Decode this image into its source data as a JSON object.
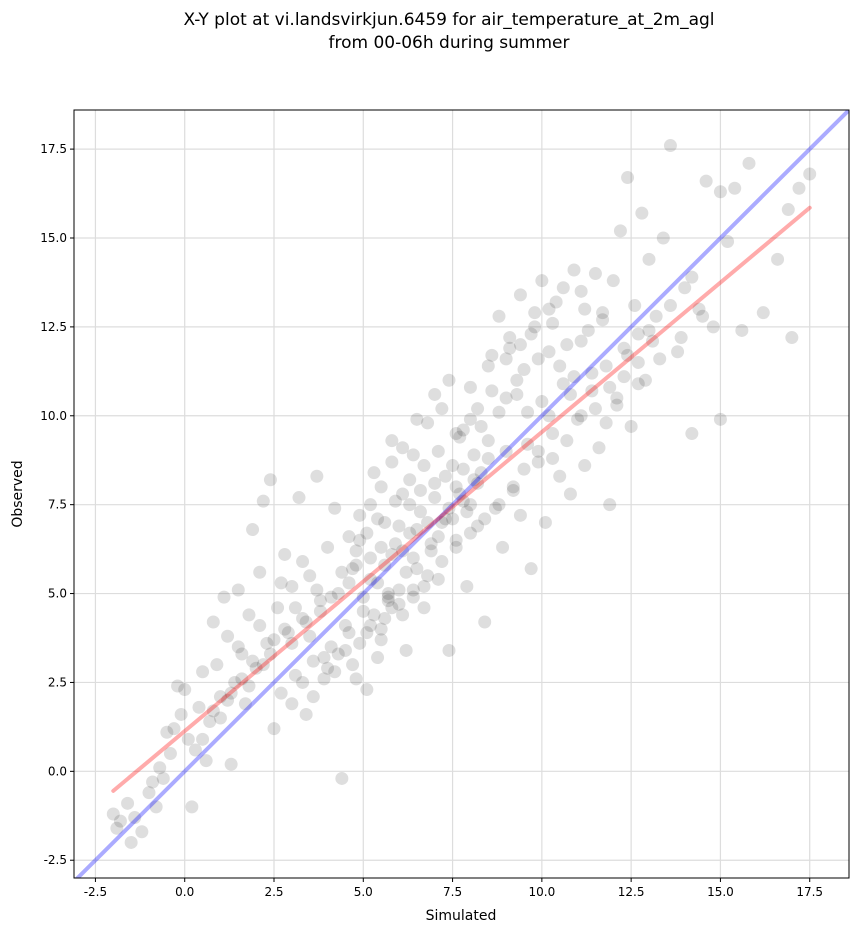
{
  "chart_data": {
    "type": "scatter",
    "title_lines": [
      "X-Y plot at vi.landsvirkjun.6459 for air_temperature_at_2m_agl",
      "from 00-06h during summer"
    ],
    "xlabel": "Simulated",
    "ylabel": "Observed",
    "xlim": [
      -3.1,
      18.6
    ],
    "ylim": [
      -3.0,
      18.6
    ],
    "xticks": [
      -2.5,
      0.0,
      2.5,
      5.0,
      7.5,
      10.0,
      12.5,
      15.0,
      17.5
    ],
    "yticks": [
      -2.5,
      0.0,
      2.5,
      5.0,
      7.5,
      10.0,
      12.5,
      15.0,
      17.5
    ],
    "grid": true,
    "colors": {
      "points": "#000000",
      "identity_line": "#0000ff",
      "regression_line": "#ff0000",
      "grid": "#dddddd"
    },
    "point_alpha": 0.08,
    "lines": [
      {
        "kind": "identity",
        "x": [
          -3.1,
          18.6
        ],
        "y": [
          -3.1,
          18.6
        ]
      },
      {
        "kind": "regression",
        "x": [
          -2.0,
          17.5
        ],
        "y": [
          -0.55,
          15.85
        ]
      }
    ],
    "points": [
      [
        -2.0,
        -1.2
      ],
      [
        -1.9,
        -1.6
      ],
      [
        -1.8,
        -1.4
      ],
      [
        -1.6,
        -0.9
      ],
      [
        -1.5,
        -2.0
      ],
      [
        -1.4,
        -1.3
      ],
      [
        -1.2,
        -1.7
      ],
      [
        -1.0,
        -0.6
      ],
      [
        -0.9,
        -0.3
      ],
      [
        -0.8,
        -1.0
      ],
      [
        -0.7,
        0.1
      ],
      [
        -0.6,
        -0.2
      ],
      [
        -0.5,
        1.1
      ],
      [
        -0.4,
        0.5
      ],
      [
        -0.3,
        1.2
      ],
      [
        -0.2,
        2.4
      ],
      [
        -0.1,
        1.6
      ],
      [
        0.0,
        2.3
      ],
      [
        0.1,
        0.9
      ],
      [
        0.2,
        -1.0
      ],
      [
        0.3,
        0.6
      ],
      [
        0.4,
        1.8
      ],
      [
        0.5,
        2.8
      ],
      [
        0.6,
        0.3
      ],
      [
        0.7,
        1.4
      ],
      [
        0.8,
        4.2
      ],
      [
        0.9,
        3.0
      ],
      [
        1.0,
        2.1
      ],
      [
        1.1,
        4.9
      ],
      [
        1.2,
        3.8
      ],
      [
        1.3,
        0.2
      ],
      [
        1.4,
        2.5
      ],
      [
        1.5,
        5.1
      ],
      [
        1.6,
        3.3
      ],
      [
        1.7,
        1.9
      ],
      [
        1.8,
        4.4
      ],
      [
        1.9,
        6.8
      ],
      [
        2.0,
        2.9
      ],
      [
        2.1,
        5.6
      ],
      [
        2.2,
        7.6
      ],
      [
        2.3,
        3.6
      ],
      [
        2.4,
        8.2
      ],
      [
        2.5,
        1.2
      ],
      [
        2.6,
        4.6
      ],
      [
        2.7,
        2.2
      ],
      [
        2.8,
        6.1
      ],
      [
        2.9,
        3.9
      ],
      [
        3.0,
        5.2
      ],
      [
        3.1,
        2.7
      ],
      [
        3.2,
        7.7
      ],
      [
        3.3,
        4.3
      ],
      [
        3.4,
        1.6
      ],
      [
        3.5,
        5.5
      ],
      [
        3.6,
        3.1
      ],
      [
        3.7,
        8.3
      ],
      [
        3.8,
        4.8
      ],
      [
        3.9,
        2.6
      ],
      [
        4.0,
        6.3
      ],
      [
        4.1,
        3.5
      ],
      [
        4.2,
        7.4
      ],
      [
        4.3,
        5.0
      ],
      [
        4.4,
        -0.2
      ],
      [
        4.5,
        4.1
      ],
      [
        4.6,
        6.6
      ],
      [
        4.7,
        3.0
      ],
      [
        4.8,
        5.8
      ],
      [
        4.9,
        7.2
      ],
      [
        5.0,
        4.5
      ],
      [
        5.1,
        2.3
      ],
      [
        5.2,
        6.0
      ],
      [
        5.3,
        8.4
      ],
      [
        5.4,
        5.3
      ],
      [
        5.5,
        3.7
      ],
      [
        5.6,
        7.0
      ],
      [
        5.7,
        4.9
      ],
      [
        5.8,
        9.3
      ],
      [
        5.9,
        6.4
      ],
      [
        6.0,
        5.1
      ],
      [
        6.1,
        7.8
      ],
      [
        6.2,
        3.4
      ],
      [
        6.3,
        6.7
      ],
      [
        6.4,
        8.9
      ],
      [
        6.5,
        5.7
      ],
      [
        6.6,
        7.3
      ],
      [
        6.7,
        4.6
      ],
      [
        6.8,
        9.8
      ],
      [
        6.9,
        6.2
      ],
      [
        7.0,
        8.1
      ],
      [
        7.1,
        5.4
      ],
      [
        7.2,
        10.2
      ],
      [
        7.3,
        7.1
      ],
      [
        7.4,
        3.4
      ],
      [
        7.5,
        8.6
      ],
      [
        7.6,
        6.5
      ],
      [
        7.7,
        9.4
      ],
      [
        7.8,
        7.6
      ],
      [
        7.9,
        5.2
      ],
      [
        8.0,
        10.8
      ],
      [
        8.1,
        8.2
      ],
      [
        8.2,
        6.9
      ],
      [
        8.3,
        9.7
      ],
      [
        8.4,
        4.2
      ],
      [
        8.5,
        8.8
      ],
      [
        8.6,
        11.7
      ],
      [
        8.7,
        7.4
      ],
      [
        8.8,
        10.1
      ],
      [
        8.9,
        6.3
      ],
      [
        9.0,
        9.0
      ],
      [
        9.1,
        12.2
      ],
      [
        9.2,
        8.0
      ],
      [
        9.3,
        10.6
      ],
      [
        9.4,
        7.2
      ],
      [
        9.5,
        11.3
      ],
      [
        9.6,
        9.2
      ],
      [
        9.7,
        5.7
      ],
      [
        9.8,
        12.9
      ],
      [
        9.9,
        8.7
      ],
      [
        10.0,
        10.4
      ],
      [
        10.1,
        7.0
      ],
      [
        10.2,
        11.8
      ],
      [
        10.3,
        9.5
      ],
      [
        10.4,
        13.2
      ],
      [
        10.5,
        8.3
      ],
      [
        10.6,
        10.9
      ],
      [
        10.7,
        12.0
      ],
      [
        10.8,
        7.8
      ],
      [
        10.9,
        11.1
      ],
      [
        11.0,
        9.9
      ],
      [
        11.1,
        13.5
      ],
      [
        11.2,
        8.6
      ],
      [
        11.3,
        12.4
      ],
      [
        11.4,
        10.7
      ],
      [
        11.5,
        14.0
      ],
      [
        11.6,
        9.1
      ],
      [
        11.7,
        12.7
      ],
      [
        11.8,
        11.4
      ],
      [
        11.9,
        7.5
      ],
      [
        12.0,
        13.8
      ],
      [
        12.1,
        10.3
      ],
      [
        12.2,
        15.2
      ],
      [
        12.3,
        11.9
      ],
      [
        12.4,
        16.7
      ],
      [
        12.5,
        9.7
      ],
      [
        12.6,
        13.1
      ],
      [
        12.7,
        12.3
      ],
      [
        12.8,
        15.7
      ],
      [
        12.9,
        11.0
      ],
      [
        13.0,
        14.4
      ],
      [
        13.2,
        12.8
      ],
      [
        13.4,
        15.0
      ],
      [
        13.6,
        17.6
      ],
      [
        13.8,
        11.8
      ],
      [
        14.0,
        13.6
      ],
      [
        14.2,
        9.5
      ],
      [
        14.4,
        13.0
      ],
      [
        14.6,
        16.6
      ],
      [
        14.8,
        12.5
      ],
      [
        15.0,
        16.3
      ],
      [
        15.0,
        9.9
      ],
      [
        15.2,
        14.9
      ],
      [
        15.4,
        16.4
      ],
      [
        15.6,
        12.4
      ],
      [
        15.8,
        17.1
      ],
      [
        16.2,
        12.9
      ],
      [
        16.6,
        14.4
      ],
      [
        16.9,
        15.8
      ],
      [
        17.0,
        12.2
      ],
      [
        17.2,
        16.4
      ],
      [
        17.5,
        16.8
      ],
      [
        5.0,
        4.9
      ],
      [
        5.2,
        5.4
      ],
      [
        5.5,
        6.3
      ],
      [
        5.6,
        5.8
      ],
      [
        5.8,
        6.1
      ],
      [
        6.0,
        6.9
      ],
      [
        6.1,
        6.2
      ],
      [
        6.3,
        7.5
      ],
      [
        6.5,
        6.8
      ],
      [
        6.6,
        7.9
      ],
      [
        6.8,
        7.0
      ],
      [
        7.0,
        7.7
      ],
      [
        7.1,
        6.6
      ],
      [
        7.3,
        8.3
      ],
      [
        7.4,
        7.4
      ],
      [
        7.6,
        8.0
      ],
      [
        7.8,
        8.5
      ],
      [
        7.9,
        7.3
      ],
      [
        8.1,
        8.9
      ],
      [
        8.3,
        8.4
      ],
      [
        8.5,
        9.3
      ],
      [
        5.3,
        4.4
      ],
      [
        5.7,
        5.0
      ],
      [
        6.2,
        5.6
      ],
      [
        6.4,
        6.0
      ],
      [
        6.9,
        6.4
      ],
      [
        7.2,
        7.0
      ],
      [
        7.5,
        7.1
      ],
      [
        7.7,
        7.8
      ],
      [
        8.0,
        7.5
      ],
      [
        8.2,
        8.1
      ],
      [
        4.6,
        5.3
      ],
      [
        4.8,
        6.2
      ],
      [
        5.1,
        6.7
      ],
      [
        5.4,
        7.1
      ],
      [
        5.9,
        7.6
      ],
      [
        6.3,
        8.2
      ],
      [
        6.7,
        8.6
      ],
      [
        7.1,
        9.0
      ],
      [
        7.6,
        9.5
      ],
      [
        8.0,
        9.9
      ],
      [
        5.6,
        4.3
      ],
      [
        6.0,
        4.7
      ],
      [
        6.4,
        5.1
      ],
      [
        6.8,
        5.5
      ],
      [
        7.2,
        5.9
      ],
      [
        7.6,
        6.3
      ],
      [
        8.0,
        6.7
      ],
      [
        8.4,
        7.1
      ],
      [
        8.8,
        7.5
      ],
      [
        9.2,
        7.9
      ],
      [
        3.5,
        3.8
      ],
      [
        3.8,
        4.5
      ],
      [
        4.1,
        4.9
      ],
      [
        4.4,
        5.6
      ],
      [
        4.7,
        5.7
      ],
      [
        4.9,
        6.5
      ],
      [
        5.2,
        7.5
      ],
      [
        5.5,
        8.0
      ],
      [
        5.8,
        8.7
      ],
      [
        6.1,
        9.1
      ],
      [
        9.0,
        10.5
      ],
      [
        9.3,
        11.0
      ],
      [
        9.6,
        10.1
      ],
      [
        9.9,
        11.6
      ],
      [
        10.2,
        10.0
      ],
      [
        10.5,
        11.4
      ],
      [
        10.8,
        10.6
      ],
      [
        11.1,
        12.1
      ],
      [
        11.4,
        11.2
      ],
      [
        11.7,
        12.9
      ],
      [
        1.0,
        1.5
      ],
      [
        1.3,
        2.2
      ],
      [
        1.6,
        2.6
      ],
      [
        1.9,
        3.1
      ],
      [
        2.2,
        3.0
      ],
      [
        2.5,
        3.7
      ],
      [
        2.8,
        4.0
      ],
      [
        3.1,
        4.6
      ],
      [
        3.4,
        4.2
      ],
      [
        3.7,
        5.1
      ],
      [
        0.5,
        0.9
      ],
      [
        0.8,
        1.7
      ],
      [
        1.2,
        2.0
      ],
      [
        1.5,
        3.5
      ],
      [
        1.8,
        2.4
      ],
      [
        2.1,
        4.1
      ],
      [
        2.4,
        3.3
      ],
      [
        2.7,
        5.3
      ],
      [
        3.0,
        3.6
      ],
      [
        3.3,
        5.9
      ],
      [
        6.5,
        9.9
      ],
      [
        7.0,
        10.6
      ],
      [
        7.4,
        11.0
      ],
      [
        7.8,
        9.6
      ],
      [
        8.2,
        10.2
      ],
      [
        8.6,
        10.7
      ],
      [
        9.0,
        11.6
      ],
      [
        9.4,
        12.0
      ],
      [
        9.8,
        12.5
      ],
      [
        10.2,
        13.0
      ],
      [
        9.5,
        8.5
      ],
      [
        9.9,
        9.0
      ],
      [
        10.3,
        8.8
      ],
      [
        10.7,
        9.3
      ],
      [
        11.1,
        10.0
      ],
      [
        11.5,
        10.2
      ],
      [
        11.9,
        10.8
      ],
      [
        12.3,
        11.1
      ],
      [
        12.7,
        11.5
      ],
      [
        13.1,
        12.1
      ],
      [
        4.0,
        2.9
      ],
      [
        4.3,
        3.3
      ],
      [
        4.6,
        3.9
      ],
      [
        4.9,
        3.6
      ],
      [
        5.2,
        4.1
      ],
      [
        5.5,
        4.0
      ],
      [
        5.8,
        4.6
      ],
      [
        6.1,
        4.4
      ],
      [
        6.4,
        4.9
      ],
      [
        6.7,
        5.2
      ],
      [
        8.5,
        11.4
      ],
      [
        8.8,
        12.8
      ],
      [
        9.1,
        11.9
      ],
      [
        9.4,
        13.4
      ],
      [
        9.7,
        12.3
      ],
      [
        10.0,
        13.8
      ],
      [
        10.3,
        12.6
      ],
      [
        10.6,
        13.6
      ],
      [
        10.9,
        14.1
      ],
      [
        11.2,
        13.0
      ],
      [
        3.0,
        1.9
      ],
      [
        3.3,
        2.5
      ],
      [
        3.6,
        2.1
      ],
      [
        3.9,
        3.2
      ],
      [
        4.2,
        2.8
      ],
      [
        4.5,
        3.4
      ],
      [
        4.8,
        2.6
      ],
      [
        5.1,
        3.9
      ],
      [
        5.4,
        3.2
      ],
      [
        5.7,
        4.8
      ],
      [
        11.8,
        9.8
      ],
      [
        12.1,
        10.5
      ],
      [
        12.4,
        11.7
      ],
      [
        12.7,
        10.9
      ],
      [
        13.0,
        12.4
      ],
      [
        13.3,
        11.6
      ],
      [
        13.6,
        13.1
      ],
      [
        13.9,
        12.2
      ],
      [
        14.2,
        13.9
      ],
      [
        14.5,
        12.8
      ]
    ]
  }
}
